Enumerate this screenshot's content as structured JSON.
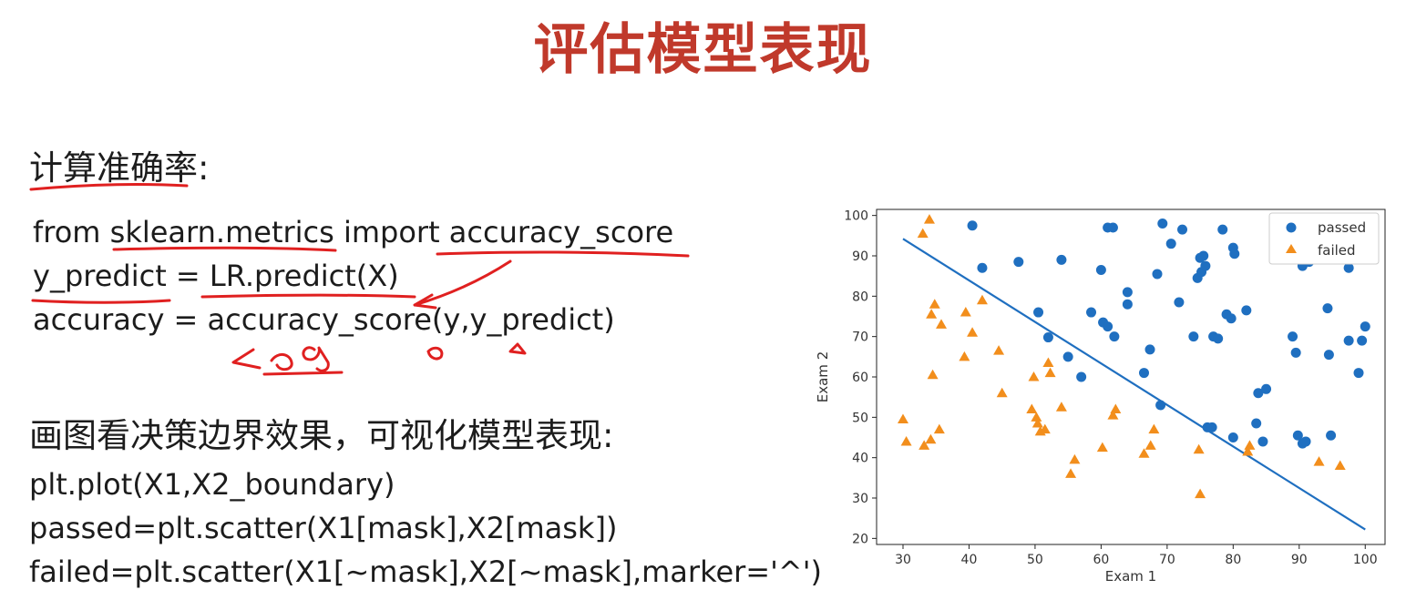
{
  "title": "评估模型表现",
  "section1": {
    "heading": "计算准确率:"
  },
  "code1": [
    "from sklearn.metrics import accuracy_score",
    "y_predict = LR.predict(X)",
    "accuracy = accuracy_score(y,y_predict)"
  ],
  "section2": {
    "heading": "画图看决策边界效果，可视化模型表现:"
  },
  "code2": [
    "plt.plot(X1,X2_boundary)",
    "passed=plt.scatter(X1[mask],X2[mask])",
    "failed=plt.scatter(X1[~mask],X2[~mask],marker='^')"
  ],
  "colors": {
    "title": "#c0392b",
    "passed": "#1f6fc0",
    "failed": "#f28e1c",
    "annotation": "#e02020"
  },
  "chart_data": {
    "type": "scatter",
    "xlabel": "Exam 1",
    "ylabel": "Exam 2",
    "xlim": [
      26,
      103
    ],
    "ylim": [
      18.5,
      101.5
    ],
    "xticks": [
      30,
      40,
      50,
      60,
      70,
      80,
      90,
      100
    ],
    "yticks": [
      20,
      30,
      40,
      50,
      60,
      70,
      80,
      90,
      100
    ],
    "legend_position": "top-right",
    "legend": [
      "passed",
      "failed"
    ],
    "boundary": {
      "x": [
        30,
        100
      ],
      "y": [
        94.2,
        22.2
      ]
    },
    "series": [
      {
        "name": "passed",
        "marker": "circle",
        "color": "#1f6fc0",
        "points": [
          [
            40.5,
            97.5
          ],
          [
            42,
            87
          ],
          [
            47.5,
            88.5
          ],
          [
            50.5,
            76
          ],
          [
            52,
            69.8
          ],
          [
            54,
            89
          ],
          [
            55,
            65
          ],
          [
            57,
            60
          ],
          [
            58.5,
            76
          ],
          [
            60,
            86.5
          ],
          [
            60.3,
            73.5
          ],
          [
            61,
            97
          ],
          [
            61,
            72.5
          ],
          [
            61.8,
            97
          ],
          [
            62,
            70
          ],
          [
            64,
            81
          ],
          [
            64,
            78
          ],
          [
            66.5,
            61
          ],
          [
            67.4,
            66.8
          ],
          [
            68.5,
            85.5
          ],
          [
            69,
            53
          ],
          [
            69.3,
            98
          ],
          [
            70.6,
            93
          ],
          [
            71.8,
            78.5
          ],
          [
            72.3,
            96.5
          ],
          [
            74,
            70
          ],
          [
            74.6,
            84.5
          ],
          [
            75,
            89.5
          ],
          [
            75.2,
            86
          ],
          [
            75.5,
            90
          ],
          [
            75.8,
            87.5
          ],
          [
            76.1,
            47.5
          ],
          [
            76.8,
            47.5
          ],
          [
            77,
            70
          ],
          [
            77.7,
            69.5
          ],
          [
            78.4,
            96.5
          ],
          [
            79,
            75.5
          ],
          [
            79.7,
            74.5
          ],
          [
            80,
            92
          ],
          [
            80.2,
            90.5
          ],
          [
            80,
            45
          ],
          [
            82,
            76.5
          ],
          [
            83.5,
            48.5
          ],
          [
            83.8,
            56
          ],
          [
            84.5,
            44
          ],
          [
            85,
            57
          ],
          [
            89,
            70
          ],
          [
            89.5,
            66
          ],
          [
            89.8,
            45.5
          ],
          [
            90.5,
            87.5
          ],
          [
            90.5,
            43.5
          ],
          [
            91,
            44
          ],
          [
            91.5,
            88.5
          ],
          [
            94.3,
            77
          ],
          [
            94.5,
            65.5
          ],
          [
            94.8,
            45.5
          ],
          [
            97.5,
            87
          ],
          [
            97.5,
            69
          ],
          [
            99,
            61
          ],
          [
            99.5,
            69
          ],
          [
            100,
            72.5
          ]
        ]
      },
      {
        "name": "failed",
        "marker": "triangle",
        "color": "#f28e1c",
        "points": [
          [
            30,
            49.5
          ],
          [
            30.5,
            44
          ],
          [
            33,
            95.5
          ],
          [
            33.2,
            43
          ],
          [
            34,
            99
          ],
          [
            34.2,
            44.5
          ],
          [
            34.3,
            75.5
          ],
          [
            34.5,
            60.5
          ],
          [
            34.8,
            78
          ],
          [
            35.5,
            47
          ],
          [
            35.8,
            73
          ],
          [
            39.5,
            76
          ],
          [
            39.3,
            65
          ],
          [
            40.5,
            71
          ],
          [
            42,
            79
          ],
          [
            44.5,
            66.5
          ],
          [
            45,
            56
          ],
          [
            49.5,
            52
          ],
          [
            49.8,
            60
          ],
          [
            50.2,
            50
          ],
          [
            50.4,
            48.5
          ],
          [
            50.8,
            46.5
          ],
          [
            51.5,
            47
          ],
          [
            52,
            63.5
          ],
          [
            52.3,
            61
          ],
          [
            54,
            52.5
          ],
          [
            55.4,
            36
          ],
          [
            56,
            39.5
          ],
          [
            60.2,
            42.5
          ],
          [
            61.8,
            50.5
          ],
          [
            62.2,
            52
          ],
          [
            66.5,
            41
          ],
          [
            67.5,
            43
          ],
          [
            68,
            47
          ],
          [
            74.8,
            42
          ],
          [
            75,
            31
          ],
          [
            82.2,
            41.5
          ],
          [
            82.5,
            43
          ],
          [
            93,
            39
          ],
          [
            96.2,
            38
          ]
        ]
      }
    ]
  }
}
